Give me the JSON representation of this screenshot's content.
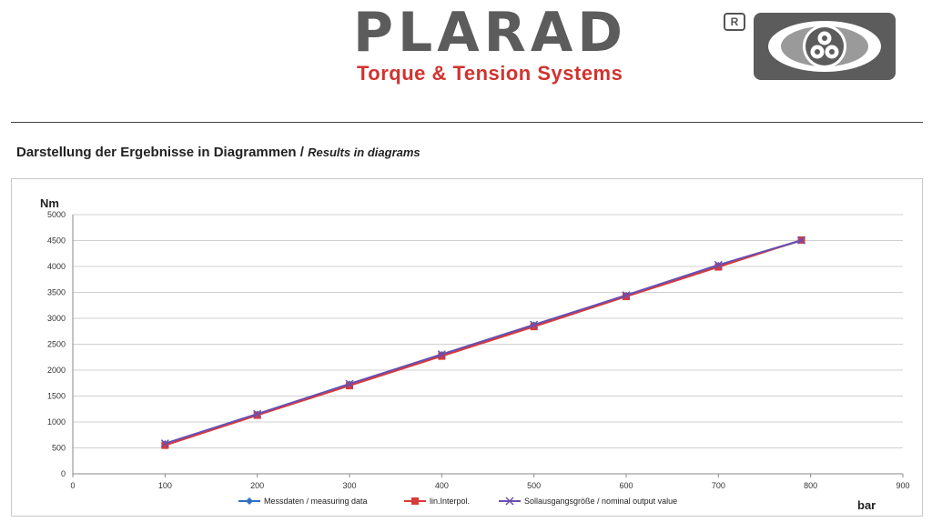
{
  "header": {
    "brand": "PLARAD",
    "registered_mark": "R",
    "tagline": "Torque & Tension Systems"
  },
  "section_title": {
    "de": "Darstellung der Ergebnisse in Diagrammen /",
    "en": "Results in diagrams"
  },
  "colors": {
    "brand_gray": "#5c5c5c",
    "brand_red": "#d1332e",
    "series_measured": "#2f6fc2",
    "series_interp": "#d93a3a",
    "series_nominal": "#6a4fb0",
    "gridline": "#d0d0d0"
  },
  "chart_data": {
    "type": "line",
    "ylabel": "Nm",
    "xlabel": "bar",
    "xlim": [
      0,
      900
    ],
    "ylim": [
      0,
      5000
    ],
    "xticks": [
      0,
      100,
      200,
      300,
      400,
      500,
      600,
      700,
      800,
      900
    ],
    "yticks": [
      0,
      500,
      1000,
      1500,
      2000,
      2500,
      3000,
      3500,
      4000,
      4500,
      5000
    ],
    "grid": true,
    "legend_position": "bottom",
    "series": [
      {
        "name": "Messdaten / measuring data",
        "marker": "diamond",
        "color": "#2f6fc2",
        "x": [
          100,
          200,
          300,
          400,
          500,
          600,
          700,
          790
        ],
        "y": [
          580,
          1150,
          1730,
          2300,
          2870,
          3440,
          4020,
          4500
        ]
      },
      {
        "name": "lin.Interpol.",
        "marker": "square",
        "color": "#d93a3a",
        "x": [
          100,
          200,
          300,
          400,
          500,
          600,
          700,
          790
        ],
        "y": [
          550,
          1130,
          1700,
          2270,
          2840,
          3420,
          3990,
          4510
        ]
      },
      {
        "name": "Sollausgangsgröße / nominal output value",
        "marker": "x",
        "color": "#6a4fb0",
        "x": [
          100,
          200,
          300,
          400,
          500,
          600,
          700,
          790
        ],
        "y": [
          585,
          1155,
          1735,
          2305,
          2875,
          3445,
          4030,
          4505
        ]
      }
    ]
  }
}
